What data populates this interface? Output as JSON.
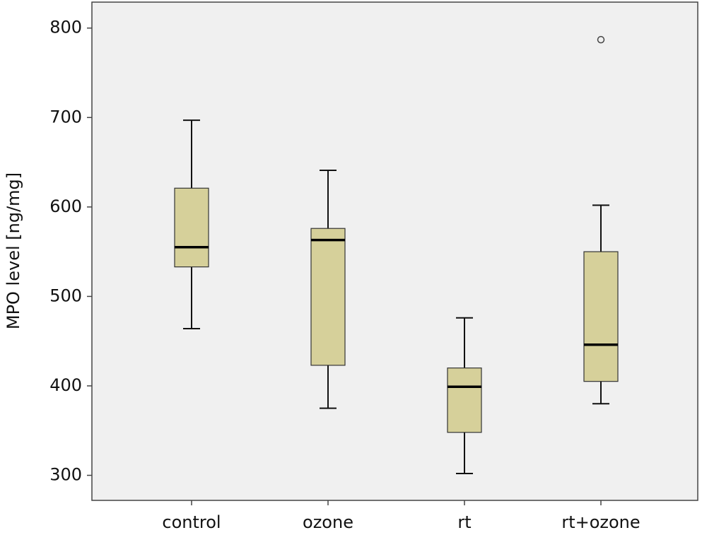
{
  "chart_data": {
    "type": "box",
    "y_label": "MPO level [ng/mg]",
    "categories": [
      "control",
      "ozone",
      "rt",
      "rt+ozone"
    ],
    "boxes": [
      {
        "whislo": 464,
        "q1": 533,
        "med": 555,
        "q3": 621,
        "whishi": 697
      },
      {
        "whislo": 375,
        "q1": 423,
        "med": 563,
        "q3": 576,
        "whishi": 641
      },
      {
        "whislo": 302,
        "q1": 348,
        "med": 399,
        "q3": 420,
        "whishi": 476
      },
      {
        "whislo": 380,
        "q1": 405,
        "med": 446,
        "q3": 550,
        "whishi": 602,
        "fliers": [
          787
        ]
      }
    ],
    "color": "#d6d09a",
    "ylim": [
      272,
      829
    ],
    "yticks": [
      300,
      400,
      500,
      600,
      700,
      800
    ]
  }
}
